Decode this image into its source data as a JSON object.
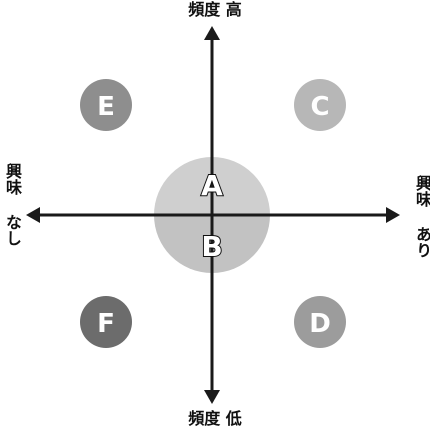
{
  "axis_labels": {
    "top": "頻度 高",
    "bottom": "頻度 低",
    "left": "興味 なし",
    "right": "興味 あり"
  },
  "nodes": [
    {
      "id": "A",
      "label": "A"
    },
    {
      "id": "B",
      "label": "B"
    },
    {
      "id": "C",
      "label": "C"
    },
    {
      "id": "D",
      "label": "D"
    },
    {
      "id": "E",
      "label": "E"
    },
    {
      "id": "F",
      "label": "F"
    }
  ],
  "colors": {
    "axis": "#1a1a1a",
    "center_top": "#cfcfcf",
    "center_bottom": "#c2c2c2",
    "node_E": "#8e8e8e",
    "node_C": "#b7b7b7",
    "node_F": "#6c6c6c",
    "node_D": "#9c9c9c",
    "letter_fill": "#ffffff",
    "letter_outline": "#111111"
  }
}
